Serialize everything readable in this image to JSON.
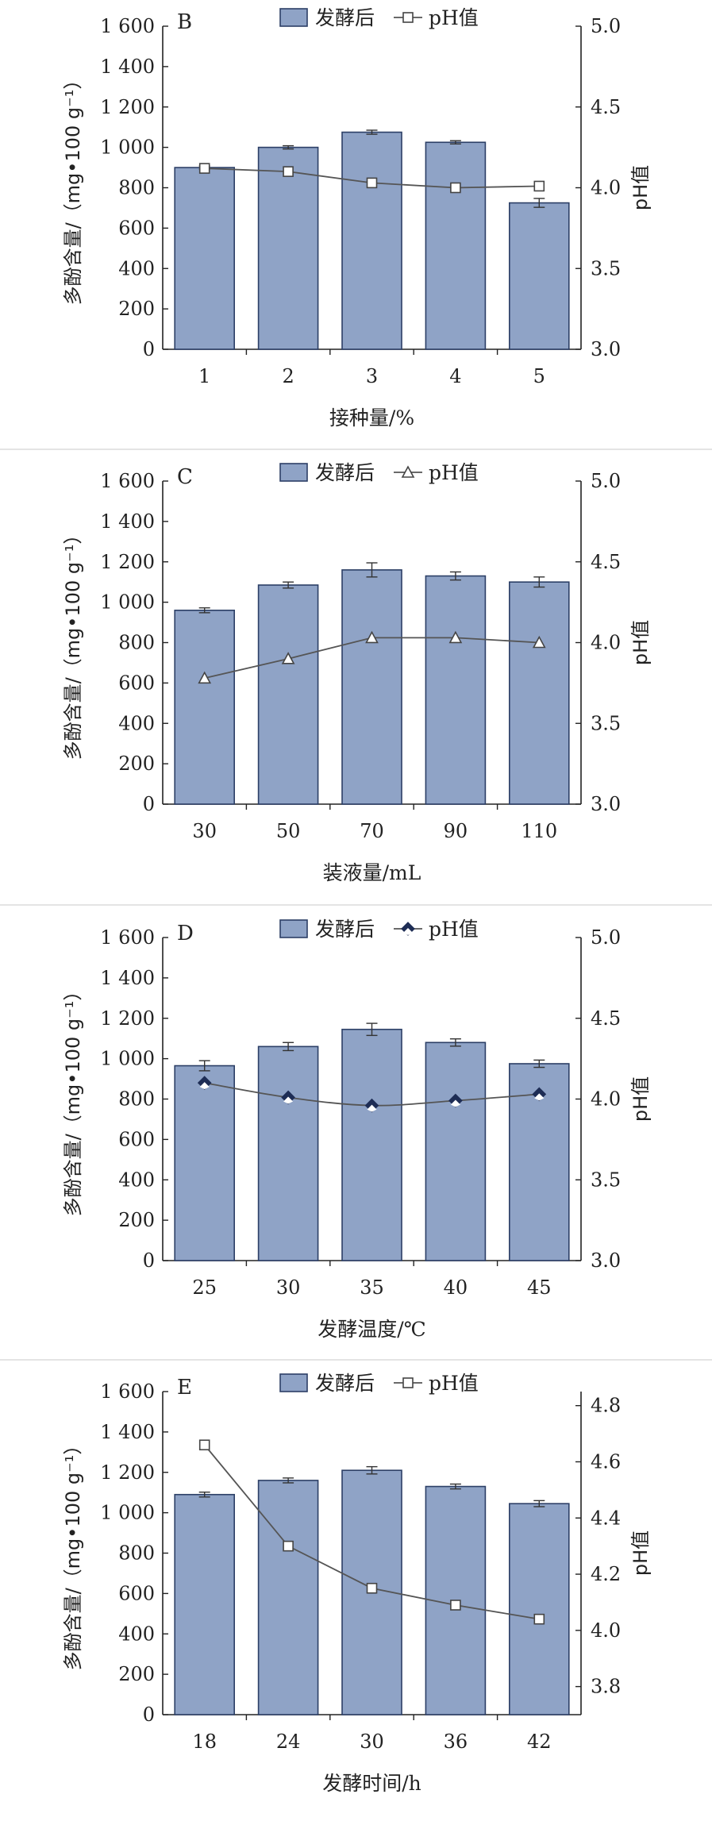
{
  "chart_data": [
    {
      "type": "bar",
      "panel_label": "B",
      "xlabel": "接种量/%",
      "ylabel": "多酚含量/（mg•100 g⁻¹）",
      "y2label": "pH值",
      "categories": [
        "1",
        "2",
        "3",
        "4",
        "5"
      ],
      "ylim": [
        0,
        1600
      ],
      "y_ticks": [
        "0",
        "200",
        "400",
        "600",
        "800",
        "1 000",
        "1 200",
        "1 400",
        "1 600"
      ],
      "y2lim": [
        3.0,
        5.0
      ],
      "y2_ticks": [
        "3.0",
        "3.5",
        "4.0",
        "4.5",
        "5.0"
      ],
      "legend": [
        "发酵后",
        "pH值"
      ],
      "legend_position": "top",
      "marker": "square",
      "series": [
        {
          "name": "发酵后",
          "axis": "left",
          "values": [
            900,
            1000,
            1075,
            1025,
            725
          ],
          "errors": [
            8,
            8,
            10,
            8,
            22
          ]
        },
        {
          "name": "pH值",
          "axis": "right",
          "values": [
            4.12,
            4.1,
            4.03,
            4.0,
            4.01
          ]
        }
      ]
    },
    {
      "type": "bar",
      "panel_label": "C",
      "xlabel": "装液量/mL",
      "ylabel": "多酚含量/（mg•100 g⁻¹）",
      "y2label": "pH值",
      "categories": [
        "30",
        "50",
        "70",
        "90",
        "110"
      ],
      "ylim": [
        0,
        1600
      ],
      "y_ticks": [
        "0",
        "200",
        "400",
        "600",
        "800",
        "1 000",
        "1 200",
        "1 400",
        "1 600"
      ],
      "y2lim": [
        3.0,
        5.0
      ],
      "y2_ticks": [
        "3.0",
        "3.5",
        "4.0",
        "4.5",
        "5.0"
      ],
      "legend": [
        "发酵后",
        "pH值"
      ],
      "legend_position": "top",
      "marker": "triangle",
      "series": [
        {
          "name": "发酵后",
          "axis": "left",
          "values": [
            960,
            1085,
            1160,
            1130,
            1100
          ],
          "errors": [
            12,
            15,
            35,
            20,
            25
          ]
        },
        {
          "name": "pH值",
          "axis": "right",
          "values": [
            3.78,
            3.9,
            4.03,
            4.03,
            4.0
          ]
        }
      ]
    },
    {
      "type": "bar",
      "panel_label": "D",
      "xlabel": "发酵温度/℃",
      "ylabel": "多酚含量/（mg•100 g⁻¹）",
      "y2label": "pH值",
      "categories": [
        "25",
        "30",
        "35",
        "40",
        "45"
      ],
      "ylim": [
        0,
        1600
      ],
      "y_ticks": [
        "0",
        "200",
        "400",
        "600",
        "800",
        "1 000",
        "1 200",
        "1 400",
        "1 600"
      ],
      "y2lim": [
        3.0,
        5.0
      ],
      "y2_ticks": [
        "3.0",
        "3.5",
        "4.0",
        "4.5",
        "5.0"
      ],
      "legend": [
        "发酵后",
        "pH值"
      ],
      "legend_position": "top",
      "marker": "diamond",
      "series": [
        {
          "name": "发酵后",
          "axis": "left",
          "values": [
            965,
            1060,
            1145,
            1080,
            975
          ],
          "errors": [
            25,
            20,
            30,
            18,
            18
          ]
        },
        {
          "name": "pH值",
          "axis": "right",
          "values": [
            4.1,
            4.01,
            3.96,
            3.99,
            4.03
          ]
        }
      ]
    },
    {
      "type": "bar",
      "panel_label": "E",
      "xlabel": "发酵时间/h",
      "ylabel": "多酚含量/（mg•100 g⁻¹）",
      "y2label": "pH值",
      "categories": [
        "18",
        "24",
        "30",
        "36",
        "42"
      ],
      "ylim": [
        0,
        1600
      ],
      "y_ticks": [
        "0",
        "200",
        "400",
        "600",
        "800",
        "1 000",
        "1 200",
        "1 400",
        "1 600"
      ],
      "y2lim": [
        3.7,
        4.85
      ],
      "y2_ticks": [
        "3.8",
        "4.0",
        "4.2",
        "4.4",
        "4.6",
        "4.8"
      ],
      "legend": [
        "发酵后",
        "pH值"
      ],
      "legend_position": "top",
      "marker": "square",
      "series": [
        {
          "name": "发酵后",
          "axis": "left",
          "values": [
            1090,
            1160,
            1210,
            1130,
            1045
          ],
          "errors": [
            12,
            12,
            18,
            12,
            15
          ]
        },
        {
          "name": "pH值",
          "axis": "right",
          "values": [
            4.66,
            4.3,
            4.15,
            4.09,
            4.04
          ]
        }
      ]
    }
  ]
}
